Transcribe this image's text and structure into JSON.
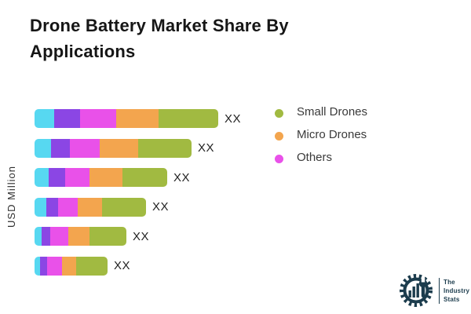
{
  "title": "Drone Battery Market Share By Applications",
  "y_axis_label": "USD Million",
  "colors": {
    "series_cyan": "#57d8f1",
    "series_purple": "#8b46e4",
    "series_magenta": "#e951e9",
    "series_orange": "#f3a54e",
    "series_green": "#a1ba41",
    "title_text": "#161616",
    "brand_navy": "#1c3c4d"
  },
  "legend": [
    {
      "label": "Small Drones",
      "color": "#a1ba41"
    },
    {
      "label": "Micro Drones",
      "color": "#f3a54e"
    },
    {
      "label": "Others",
      "color": "#e951e9"
    }
  ],
  "chart_data": {
    "type": "bar",
    "orientation": "horizontal",
    "stacked": true,
    "title": "Drone Battery Market Share By Applications",
    "ylabel": "USD Million",
    "grid": false,
    "axis_tick_labels_visible": false,
    "legend_position": "right-top",
    "value_label": "XX",
    "value_labels_note": "all bar totals are shown only as the placeholder text XX",
    "categories": [
      "",
      "",
      "",
      "",
      "",
      ""
    ],
    "series": [
      {
        "name": "(unlabeled cyan segment)",
        "color": "#57d8f1",
        "values": [
          25,
          21,
          18,
          15,
          9,
          7
        ]
      },
      {
        "name": "(unlabeled purple segment)",
        "color": "#8b46e4",
        "values": [
          33,
          24,
          21,
          15,
          11,
          9
        ]
      },
      {
        "name": "Others",
        "color": "#e951e9",
        "values": [
          46,
          38,
          31,
          25,
          23,
          19
        ]
      },
      {
        "name": "Micro Drones",
        "color": "#f3a54e",
        "values": [
          54,
          49,
          42,
          31,
          27,
          18
        ]
      },
      {
        "name": "Small Drones",
        "color": "#a1ba41",
        "values": [
          76,
          68,
          57,
          56,
          47,
          40
        ]
      }
    ],
    "units": "relative segment widths estimated in screen pixels"
  },
  "brand": {
    "line1": "The",
    "line2": "Industry",
    "line3": "Stats"
  }
}
